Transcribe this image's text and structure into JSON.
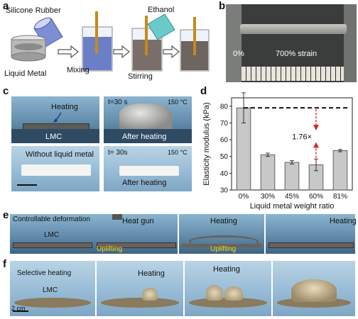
{
  "panels": {
    "a": {
      "label": "a",
      "silicone": "Silicone Rubber",
      "liquid_metal": "Liquid Metal",
      "mixing": "Mixing",
      "ethanol": "Ethanol",
      "stirring": "Stirring"
    },
    "b": {
      "label": "b",
      "left": "0%",
      "right": "700% strain"
    },
    "c": {
      "label": "c",
      "heating": "Heating",
      "t1": "t=30 s",
      "temp1": "150 °C",
      "lmc": "LMC",
      "after1": "After heating",
      "without": "Without liquid metal",
      "t2": "t= 30s",
      "temp2": "150 °C",
      "after2": "After heating"
    },
    "d": {
      "label": "d"
    },
    "e": {
      "label": "e",
      "controllable": "Controllable deformation",
      "lmc": "LMC",
      "heat_gun": "Heat gun",
      "heating1": "Heating",
      "heating2": "Heating",
      "uplifting1": "Uplifting",
      "uplifting2": "Uplifting"
    },
    "f": {
      "label": "f",
      "selective": "Selective heating",
      "lmc": "LMC",
      "heating1": "Heating",
      "heating2": "Heating",
      "scale": "2 cm"
    }
  },
  "chart_data": {
    "type": "bar",
    "categories": [
      "0%",
      "30%",
      "45%",
      "60%",
      "81%"
    ],
    "values": [
      79,
      51,
      46.5,
      45,
      53.5
    ],
    "errors": [
      9,
      1,
      1,
      3.5,
      0.7
    ],
    "xlabel": "Liquid metal weight ratio",
    "ylabel": "Elasticity modulus (kPa)",
    "ylim": [
      30,
      85
    ],
    "yticks": [
      30,
      40,
      50,
      60,
      70,
      80
    ],
    "reference_line": 79,
    "annotation": "1.76×",
    "bar_color": "#c8c8c8",
    "annotation_color": "#d62728"
  }
}
